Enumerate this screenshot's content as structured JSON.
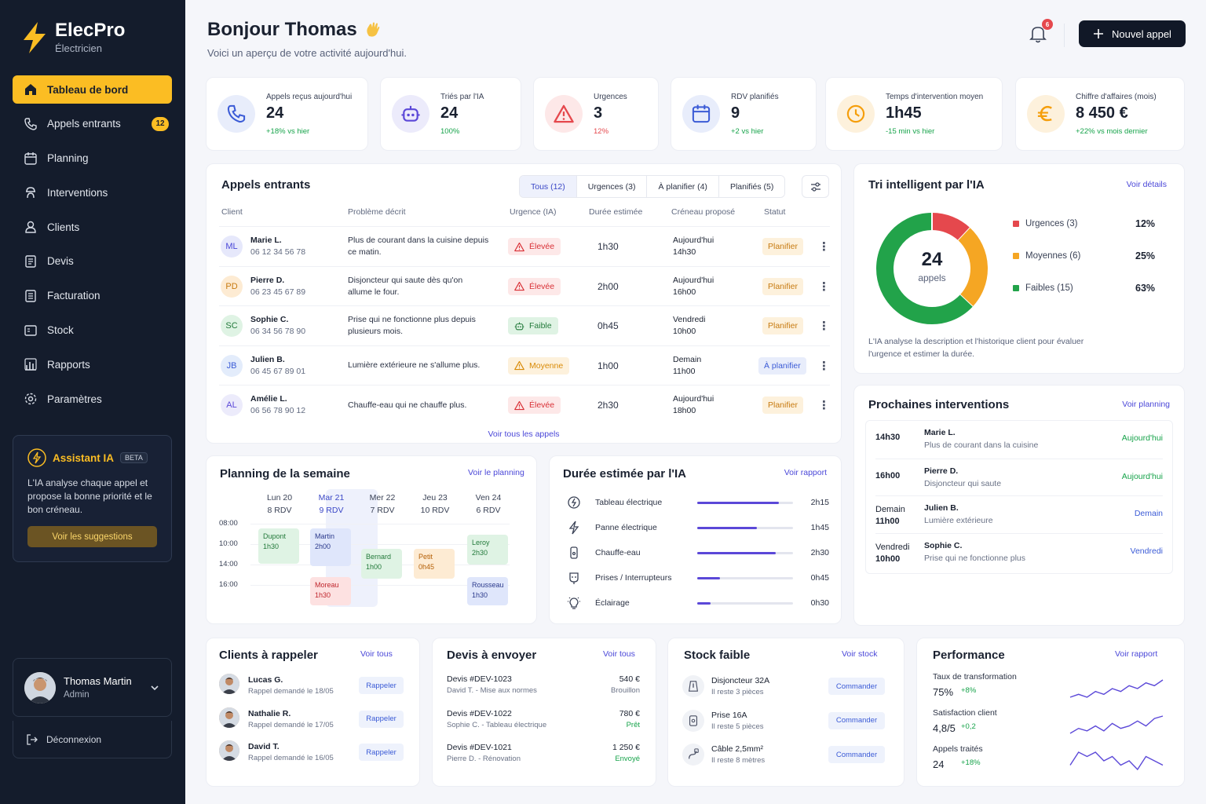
{
  "app": {
    "name": "ElecPro",
    "subtitle": "Électricien"
  },
  "nav": [
    {
      "label": "Tableau de bord",
      "icon": "home-icon",
      "active": true
    },
    {
      "label": "Appels entrants",
      "icon": "phone-icon",
      "badge": "12"
    },
    {
      "label": "Planning",
      "icon": "calendar-icon"
    },
    {
      "label": "Interventions",
      "icon": "worker-icon"
    },
    {
      "label": "Clients",
      "icon": "user-icon"
    },
    {
      "label": "Devis",
      "icon": "document-icon"
    },
    {
      "label": "Facturation",
      "icon": "invoice-icon"
    },
    {
      "label": "Stock",
      "icon": "box-icon"
    },
    {
      "label": "Rapports",
      "icon": "chart-icon"
    },
    {
      "label": "Paramètres",
      "icon": "gear-icon"
    }
  ],
  "assistant": {
    "title": "Assistant IA",
    "badge": "BETA",
    "text": "L'IA analyse chaque appel et propose la bonne priorité et le bon créneau.",
    "button": "Voir les suggestions"
  },
  "user": {
    "name": "Thomas Martin",
    "role": "Admin",
    "logout": "Déconnexion"
  },
  "header": {
    "greeting": "Bonjour Thomas",
    "subtitle": "Voici un aperçu de votre activité aujourd'hui.",
    "notifications": "6",
    "new_call": "Nouvel appel"
  },
  "kpis": [
    {
      "label": "Appels reçus aujourd'hui",
      "value": "24",
      "delta": "+18% vs hier",
      "delta_color": "#16a34a",
      "icon": "phone-icon",
      "color": "#3b5bd6"
    },
    {
      "label": "Triés par l'IA",
      "value": "24",
      "delta": "100%",
      "delta_color": "#16a34a",
      "icon": "robot-icon",
      "color": "#5b48d8"
    },
    {
      "label": "Urgences",
      "value": "3",
      "delta": "12%",
      "delta_color": "#e5484d",
      "icon": "alert-icon",
      "color": "#e5484d"
    },
    {
      "label": "RDV planifiés",
      "value": "9",
      "delta": "+2 vs hier",
      "delta_color": "#16a34a",
      "icon": "calendar-icon",
      "color": "#3b5bd6"
    },
    {
      "label": "Temps d'intervention moyen",
      "value": "1h45",
      "delta": "-15 min vs hier",
      "delta_color": "#16a34a",
      "icon": "clock-icon",
      "color": "#f59e0b"
    },
    {
      "label": "Chiffre d'affaires (mois)",
      "value": "8 450 €",
      "delta": "+22% vs mois dernier",
      "delta_color": "#16a34a",
      "icon": "euro-icon",
      "color": "#f59e0b"
    }
  ],
  "calls": {
    "title": "Appels entrants",
    "tabs": [
      "Tous (12)",
      "Urgences (3)",
      "À planifier (4)",
      "Planifiés (5)"
    ],
    "columns": [
      "Client",
      "Problème décrit",
      "Urgence (IA)",
      "Durée estimée",
      "Créneau proposé",
      "Statut"
    ],
    "rows": [
      {
        "initials": "ML",
        "name": "Marie L.",
        "phone": "06 12 34 56 78",
        "problem": "Plus de courant dans la cuisine depuis ce matin.",
        "urgency": "Élevée",
        "level": "high",
        "duration": "1h30",
        "slot_day": "Aujourd'hui",
        "slot_time": "14h30",
        "status": "Planifier",
        "status_kind": "plan"
      },
      {
        "initials": "PD",
        "name": "Pierre D.",
        "phone": "06 23 45 67 89",
        "problem": "Disjoncteur qui saute dès qu'on allume le four.",
        "urgency": "Élevée",
        "level": "high",
        "duration": "2h00",
        "slot_day": "Aujourd'hui",
        "slot_time": "16h00",
        "status": "Planifier",
        "status_kind": "plan"
      },
      {
        "initials": "SC",
        "name": "Sophie C.",
        "phone": "06 34 56 78 90",
        "problem": "Prise qui ne fonctionne plus depuis plusieurs mois.",
        "urgency": "Faible",
        "level": "low",
        "duration": "0h45",
        "slot_day": "Vendredi",
        "slot_time": "10h00",
        "status": "Planifier",
        "status_kind": "plan"
      },
      {
        "initials": "JB",
        "name": "Julien B.",
        "phone": "06 45 67 89 01",
        "problem": "Lumière extérieure ne s'allume plus.",
        "urgency": "Moyenne",
        "level": "mid",
        "duration": "1h00",
        "slot_day": "Demain",
        "slot_time": "11h00",
        "status": "À planifier",
        "status_kind": "todo"
      },
      {
        "initials": "AL",
        "name": "Amélie L.",
        "phone": "06 56 78 90 12",
        "problem": "Chauffe-eau qui ne chauffe plus.",
        "urgency": "Élevée",
        "level": "high",
        "duration": "2h30",
        "slot_day": "Aujourd'hui",
        "slot_time": "18h00",
        "status": "Planifier",
        "status_kind": "plan"
      }
    ],
    "see_all": "Voir tous les appels"
  },
  "triage": {
    "title": "Tri intelligent par l'IA",
    "link": "Voir détails",
    "center_value": "24",
    "center_label": "appels",
    "legend": [
      {
        "label": "Urgences (3)",
        "pct": "12%",
        "color": "#e5484d",
        "share": 0.12
      },
      {
        "label": "Moyennes (6)",
        "pct": "25%",
        "color": "#f5a623",
        "share": 0.25
      },
      {
        "label": "Faibles (15)",
        "pct": "63%",
        "color": "#22a34a",
        "share": 0.63
      }
    ],
    "note": "L'IA analyse la description et l'historique client pour évaluer l'urgence et estimer la durée."
  },
  "upcoming": {
    "title": "Prochaines interventions",
    "link": "Voir planning",
    "items": [
      {
        "time": "14h30",
        "time2": "",
        "name": "Marie L.",
        "desc": "Plus de courant dans la cuisine",
        "when": "Aujourd'hui",
        "color": "#16a34a"
      },
      {
        "time": "16h00",
        "time2": "",
        "name": "Pierre D.",
        "desc": "Disjoncteur qui saute",
        "when": "Aujourd'hui",
        "color": "#16a34a"
      },
      {
        "time": "Demain",
        "time2": "11h00",
        "name": "Julien B.",
        "desc": "Lumière extérieure",
        "when": "Demain",
        "color": "#3b5bd6"
      },
      {
        "time": "Vendredi",
        "time2": "10h00",
        "name": "Sophie C.",
        "desc": "Prise qui ne fonctionne plus",
        "when": "Vendredi",
        "color": "#3b5bd6"
      }
    ]
  },
  "planning": {
    "title": "Planning de la semaine",
    "link": "Voir le planning",
    "days": [
      {
        "day": "Lun 20",
        "rdv": "8 RDV"
      },
      {
        "day": "Mar 21",
        "rdv": "9 RDV"
      },
      {
        "day": "Mer 22",
        "rdv": "7 RDV"
      },
      {
        "day": "Jeu 23",
        "rdv": "10 RDV"
      },
      {
        "day": "Ven 24",
        "rdv": "6 RDV"
      }
    ],
    "times": [
      "08:00",
      "10:00",
      "14:00",
      "16:00"
    ],
    "events": [
      {
        "name": "Dupont",
        "dur": "1h30",
        "day": 0,
        "color": "#dff3e4",
        "text": "#237a3b"
      },
      {
        "name": "Martin",
        "dur": "2h00",
        "day": 1,
        "color": "#dfe6fb",
        "text": "#2b3a8c"
      },
      {
        "name": "Bernard",
        "dur": "1h00",
        "day": 2,
        "color": "#dff3e4",
        "text": "#237a3b"
      },
      {
        "name": "Petit",
        "dur": "0h45",
        "day": 3,
        "color": "#fdebd3",
        "text": "#b45f06"
      },
      {
        "name": "Leroy",
        "dur": "2h30",
        "day": 4,
        "color": "#dff3e4",
        "text": "#237a3b"
      },
      {
        "name": "Moreau",
        "dur": "1h30",
        "day": 1,
        "color": "#fde1e1",
        "text": "#c0262d"
      },
      {
        "name": "Rousseau",
        "dur": "1h30",
        "day": 4,
        "color": "#dfe6fb",
        "text": "#2b3a8c"
      }
    ]
  },
  "durations": {
    "title": "Durée estimée par l'IA",
    "link": "Voir rapport",
    "items": [
      {
        "label": "Tableau électrique",
        "value": "2h15",
        "fraction": 0.85,
        "icon": "panel-icon"
      },
      {
        "label": "Panne électrique",
        "value": "1h45",
        "fraction": 0.62,
        "icon": "bolt-icon"
      },
      {
        "label": "Chauffe-eau",
        "value": "2h30",
        "fraction": 0.82,
        "icon": "water-heater-icon"
      },
      {
        "label": "Prises / Interrupteurs",
        "value": "0h45",
        "fraction": 0.24,
        "icon": "plug-icon"
      },
      {
        "label": "Éclairage",
        "value": "0h30",
        "fraction": 0.14,
        "icon": "bulb-icon"
      }
    ]
  },
  "callbacks": {
    "title": "Clients à rappeler",
    "link": "Voir tous",
    "items": [
      {
        "name": "Lucas G.",
        "sub": "Rappel demandé le 18/05",
        "action": "Rappeler"
      },
      {
        "name": "Nathalie R.",
        "sub": "Rappel demandé le 17/05",
        "action": "Rappeler"
      },
      {
        "name": "David T.",
        "sub": "Rappel demandé le 16/05",
        "action": "Rappeler"
      }
    ]
  },
  "quotes": {
    "title": "Devis à envoyer",
    "link": "Voir tous",
    "items": [
      {
        "ref": "Devis #DEV-1023",
        "sub": "David T. - Mise aux normes",
        "amount": "540 €",
        "state": "Brouillon",
        "color": "#6a7286"
      },
      {
        "ref": "Devis #DEV-1022",
        "sub": "Sophie C. - Tableau électrique",
        "amount": "780 €",
        "state": "Prêt",
        "color": "#16a34a"
      },
      {
        "ref": "Devis #DEV-1021",
        "sub": "Pierre D. - Rénovation",
        "amount": "1 250 €",
        "state": "Envoyé",
        "color": "#16a34a"
      }
    ]
  },
  "stock": {
    "title": "Stock faible",
    "link": "Voir stock",
    "items": [
      {
        "name": "Disjoncteur 32A",
        "sub": "Il reste 3 pièces",
        "action": "Commander",
        "icon": "breaker-icon"
      },
      {
        "name": "Prise 16A",
        "sub": "Il reste 5 pièces",
        "action": "Commander",
        "icon": "socket-icon"
      },
      {
        "name": "Câble 2,5mm²",
        "sub": "Il reste 8 mètres",
        "action": "Commander",
        "icon": "cable-icon"
      }
    ]
  },
  "performance": {
    "title": "Performance",
    "link": "Voir rapport",
    "items": [
      {
        "label": "Taux de transformation",
        "value": "75%",
        "delta": "+8%",
        "trend": [
          3,
          4,
          3,
          5,
          4,
          6,
          5,
          7,
          6,
          8,
          7,
          9
        ]
      },
      {
        "label": "Satisfaction client",
        "value": "4,8/5",
        "delta": "+0,2",
        "trend": [
          2,
          4,
          3,
          5,
          3,
          6,
          4,
          5,
          7,
          5,
          8,
          9
        ]
      },
      {
        "label": "Appels traités",
        "value": "24",
        "delta": "+18%",
        "trend": [
          3,
          6,
          5,
          6,
          4,
          5,
          3,
          4,
          2,
          5,
          4,
          3
        ]
      }
    ]
  }
}
